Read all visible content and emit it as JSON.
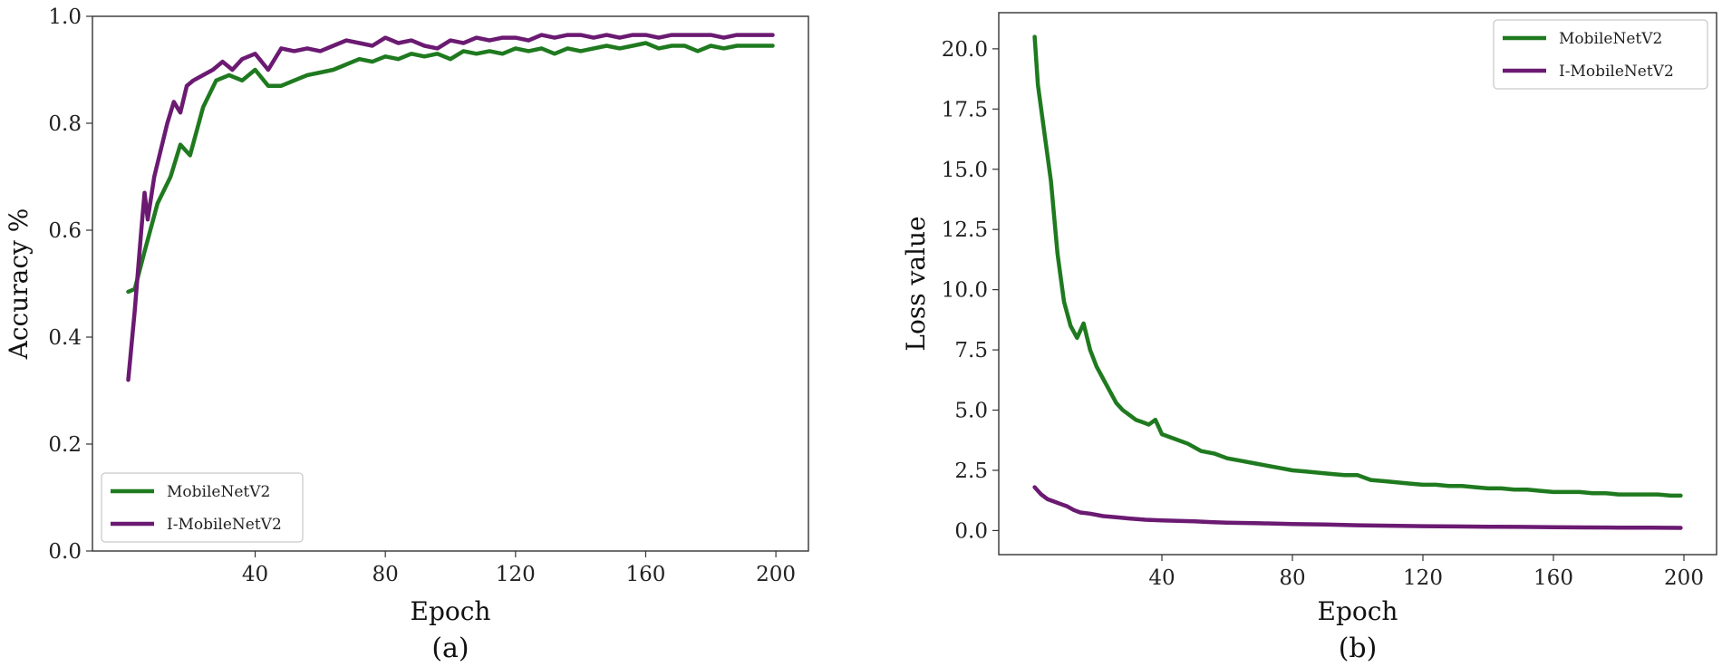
{
  "colors": {
    "mobilenet": "#1f7a1f",
    "imobilenet": "#6b1a72"
  },
  "chart_data": [
    {
      "type": "line",
      "title": "",
      "caption": "(a)",
      "xlabel": "Epoch",
      "ylabel": "Accuracy %",
      "xlim": [
        -10,
        210
      ],
      "ylim": [
        0.0,
        1.0
      ],
      "xticks": [
        40,
        80,
        120,
        160,
        200
      ],
      "yticks": [
        0.0,
        0.2,
        0.4,
        0.6,
        0.8,
        1.0
      ],
      "ytick_labels": [
        "0.0",
        "0.2",
        "0.4",
        "0.6",
        "0.8",
        "1.0"
      ],
      "grid": false,
      "legend_position": "lower-left",
      "series": [
        {
          "name": "MobileNetV2",
          "color": "#1f7a1f",
          "x": [
            1,
            3,
            6,
            10,
            14,
            17,
            20,
            24,
            28,
            32,
            36,
            40,
            44,
            48,
            52,
            56,
            60,
            64,
            68,
            72,
            76,
            80,
            84,
            88,
            92,
            96,
            100,
            104,
            108,
            112,
            116,
            120,
            124,
            128,
            132,
            136,
            140,
            144,
            148,
            152,
            156,
            160,
            164,
            168,
            172,
            176,
            180,
            184,
            188,
            192,
            196,
            199
          ],
          "y": [
            0.485,
            0.49,
            0.56,
            0.65,
            0.7,
            0.76,
            0.74,
            0.83,
            0.88,
            0.89,
            0.88,
            0.9,
            0.87,
            0.87,
            0.88,
            0.89,
            0.895,
            0.9,
            0.91,
            0.92,
            0.915,
            0.925,
            0.92,
            0.93,
            0.925,
            0.93,
            0.92,
            0.935,
            0.93,
            0.935,
            0.93,
            0.94,
            0.935,
            0.94,
            0.93,
            0.94,
            0.935,
            0.94,
            0.945,
            0.94,
            0.945,
            0.95,
            0.94,
            0.945,
            0.945,
            0.935,
            0.945,
            0.94,
            0.945,
            0.945,
            0.945,
            0.945
          ]
        },
        {
          "name": "I-MobileNetV2",
          "color": "#6b1a72",
          "x": [
            1,
            3,
            5,
            6,
            7,
            9,
            11,
            13,
            15,
            17,
            19,
            21,
            24,
            27,
            30,
            33,
            36,
            40,
            44,
            48,
            52,
            56,
            60,
            64,
            68,
            72,
            76,
            80,
            84,
            88,
            92,
            96,
            100,
            104,
            108,
            112,
            116,
            120,
            124,
            128,
            132,
            136,
            140,
            144,
            148,
            152,
            156,
            160,
            164,
            168,
            172,
            176,
            180,
            184,
            188,
            192,
            196,
            199
          ],
          "y": [
            0.32,
            0.45,
            0.6,
            0.67,
            0.62,
            0.7,
            0.75,
            0.8,
            0.84,
            0.82,
            0.87,
            0.88,
            0.89,
            0.9,
            0.915,
            0.9,
            0.92,
            0.93,
            0.9,
            0.94,
            0.935,
            0.94,
            0.935,
            0.945,
            0.955,
            0.95,
            0.945,
            0.96,
            0.95,
            0.955,
            0.945,
            0.94,
            0.955,
            0.95,
            0.96,
            0.955,
            0.96,
            0.96,
            0.955,
            0.965,
            0.96,
            0.965,
            0.965,
            0.96,
            0.965,
            0.96,
            0.965,
            0.965,
            0.96,
            0.965,
            0.965,
            0.965,
            0.965,
            0.96,
            0.965,
            0.965,
            0.965,
            0.965
          ]
        }
      ]
    },
    {
      "type": "line",
      "title": "",
      "caption": "(b)",
      "xlabel": "Epoch",
      "ylabel": "Loss value",
      "xlim": [
        -10,
        210
      ],
      "ylim": [
        -1.0,
        21.5
      ],
      "xticks": [
        40,
        80,
        120,
        160,
        200
      ],
      "yticks": [
        0.0,
        2.5,
        5.0,
        7.5,
        10.0,
        12.5,
        15.0,
        17.5,
        20.0
      ],
      "ytick_labels": [
        "0.0",
        "2.5",
        "5.0",
        "7.5",
        "10.0",
        "12.5",
        "15.0",
        "17.5",
        "20.0"
      ],
      "grid": false,
      "legend_position": "top-right",
      "series": [
        {
          "name": "MobileNetV2",
          "color": "#1f7a1f",
          "x": [
            1,
            2,
            4,
            6,
            8,
            10,
            12,
            14,
            16,
            18,
            20,
            22,
            24,
            26,
            28,
            30,
            32,
            34,
            36,
            38,
            40,
            44,
            48,
            52,
            56,
            60,
            64,
            68,
            72,
            76,
            80,
            84,
            88,
            92,
            96,
            100,
            104,
            108,
            112,
            116,
            120,
            124,
            128,
            132,
            136,
            140,
            144,
            148,
            152,
            156,
            160,
            164,
            168,
            172,
            176,
            180,
            184,
            188,
            192,
            196,
            199
          ],
          "y": [
            20.5,
            18.5,
            16.5,
            14.5,
            11.5,
            9.5,
            8.5,
            8.0,
            8.6,
            7.5,
            6.8,
            6.3,
            5.8,
            5.3,
            5.0,
            4.8,
            4.6,
            4.5,
            4.4,
            4.6,
            4.0,
            3.8,
            3.6,
            3.3,
            3.2,
            3.0,
            2.9,
            2.8,
            2.7,
            2.6,
            2.5,
            2.45,
            2.4,
            2.35,
            2.3,
            2.3,
            2.1,
            2.05,
            2.0,
            1.95,
            1.9,
            1.9,
            1.85,
            1.85,
            1.8,
            1.75,
            1.75,
            1.7,
            1.7,
            1.65,
            1.6,
            1.6,
            1.6,
            1.55,
            1.55,
            1.5,
            1.5,
            1.5,
            1.5,
            1.45,
            1.45
          ]
        },
        {
          "name": "I-MobileNetV2",
          "color": "#6b1a72",
          "x": [
            1,
            3,
            5,
            7,
            9,
            11,
            13,
            15,
            18,
            22,
            26,
            30,
            35,
            40,
            45,
            50,
            55,
            60,
            70,
            80,
            90,
            100,
            110,
            120,
            130,
            140,
            150,
            160,
            170,
            180,
            190,
            199
          ],
          "y": [
            1.8,
            1.5,
            1.3,
            1.2,
            1.1,
            1.0,
            0.85,
            0.75,
            0.7,
            0.6,
            0.55,
            0.5,
            0.45,
            0.42,
            0.4,
            0.38,
            0.35,
            0.33,
            0.3,
            0.27,
            0.25,
            0.22,
            0.2,
            0.18,
            0.17,
            0.16,
            0.15,
            0.14,
            0.13,
            0.12,
            0.12,
            0.11
          ]
        }
      ]
    }
  ]
}
